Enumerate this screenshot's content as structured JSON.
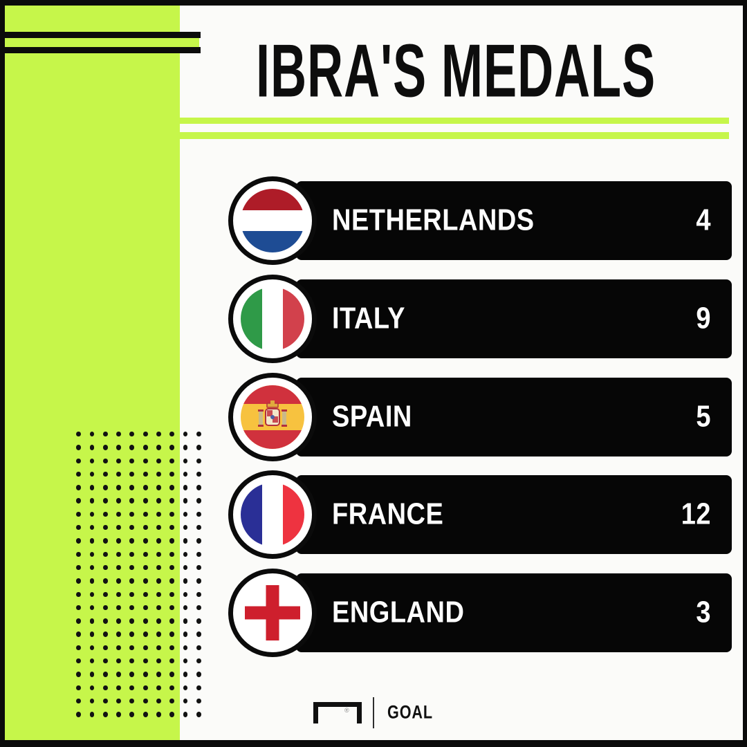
{
  "title": "IBRA'S MEDALS",
  "rows": [
    {
      "country": "NETHERLANDS",
      "value": "4",
      "flag": "netherlands"
    },
    {
      "country": "ITALY",
      "value": "9",
      "flag": "italy"
    },
    {
      "country": "SPAIN",
      "value": "5",
      "flag": "spain"
    },
    {
      "country": "FRANCE",
      "value": "12",
      "flag": "france"
    },
    {
      "country": "ENGLAND",
      "value": "3",
      "flag": "england"
    }
  ],
  "footer": {
    "brand": "GOAL",
    "registered": "®"
  },
  "colors": {
    "lime": "#c6f64a",
    "ink": "#0b0b0b",
    "bar": "#060606",
    "background": "#fbfbf9",
    "flags": {
      "netherlands": {
        "red": "#ae1c28",
        "white": "#ffffff",
        "blue": "#1e4c94"
      },
      "italy": {
        "green": "#2f9a48",
        "white": "#ffffff",
        "red": "#d2414c"
      },
      "spain": {
        "red": "#d0313d",
        "yellow": "#f7c23f"
      },
      "france": {
        "blue": "#2a2f96",
        "white": "#ffffff",
        "red": "#ee3340"
      },
      "england": {
        "white": "#ffffff",
        "red": "#ce1f2d"
      }
    }
  },
  "decor": {
    "dots": {
      "cols": 10,
      "rows": 22
    }
  },
  "chart_data": {
    "type": "table",
    "title": "IBRA'S MEDALS",
    "categories": [
      "NETHERLANDS",
      "ITALY",
      "SPAIN",
      "FRANCE",
      "ENGLAND"
    ],
    "values": [
      4,
      9,
      5,
      12,
      3
    ],
    "legend": false
  }
}
